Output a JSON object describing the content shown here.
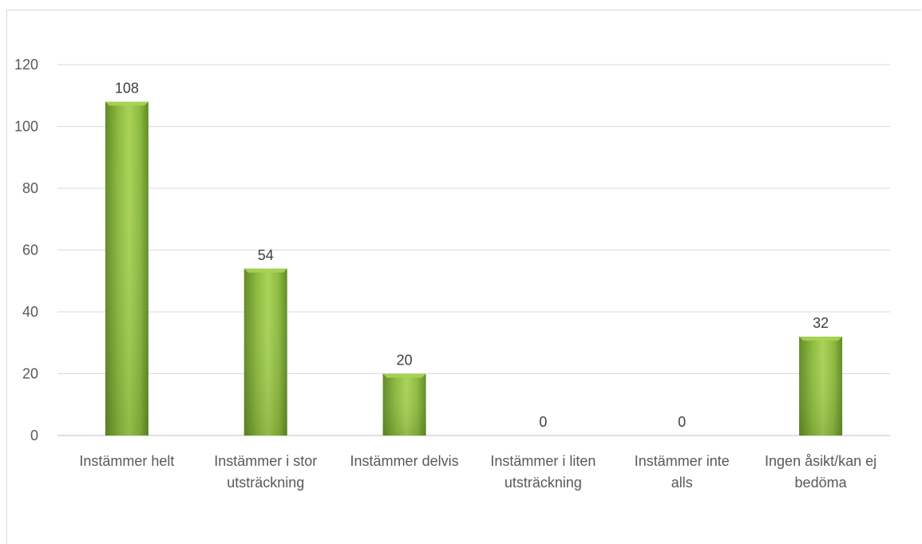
{
  "chart_data": {
    "type": "bar",
    "title": "",
    "xlabel": "",
    "ylabel": "",
    "categories": [
      "Instämmer helt",
      "Instämmer i stor utsträckning",
      "Instämmer delvis",
      "Instämmer i liten utsträckning",
      "Instämmer inte alls",
      "Ingen åsikt/kan ej bedöma"
    ],
    "category_lines": [
      [
        "Instämmer helt"
      ],
      [
        "Instämmer i stor",
        "utsträckning"
      ],
      [
        "Instämmer delvis"
      ],
      [
        "Instämmer i liten",
        "utsträckning"
      ],
      [
        "Instämmer inte",
        "alls"
      ],
      [
        "Ingen åsikt/kan ej",
        "bedöma"
      ]
    ],
    "values": [
      108,
      54,
      20,
      0,
      0,
      32
    ],
    "data_labels": [
      "108",
      "54",
      "20",
      "0",
      "0",
      "32"
    ],
    "ylim": [
      0,
      120
    ],
    "yticks": [
      "0",
      "20",
      "40",
      "60",
      "80",
      "100",
      "120"
    ],
    "grid": true,
    "legend": "none",
    "colors": {
      "bar_light": "#a9d356",
      "bar_mid": "#8cba3e",
      "bar_dark": "#5f8a24",
      "grid": "#d9d9d9",
      "axis": "#bfbfbf"
    }
  }
}
